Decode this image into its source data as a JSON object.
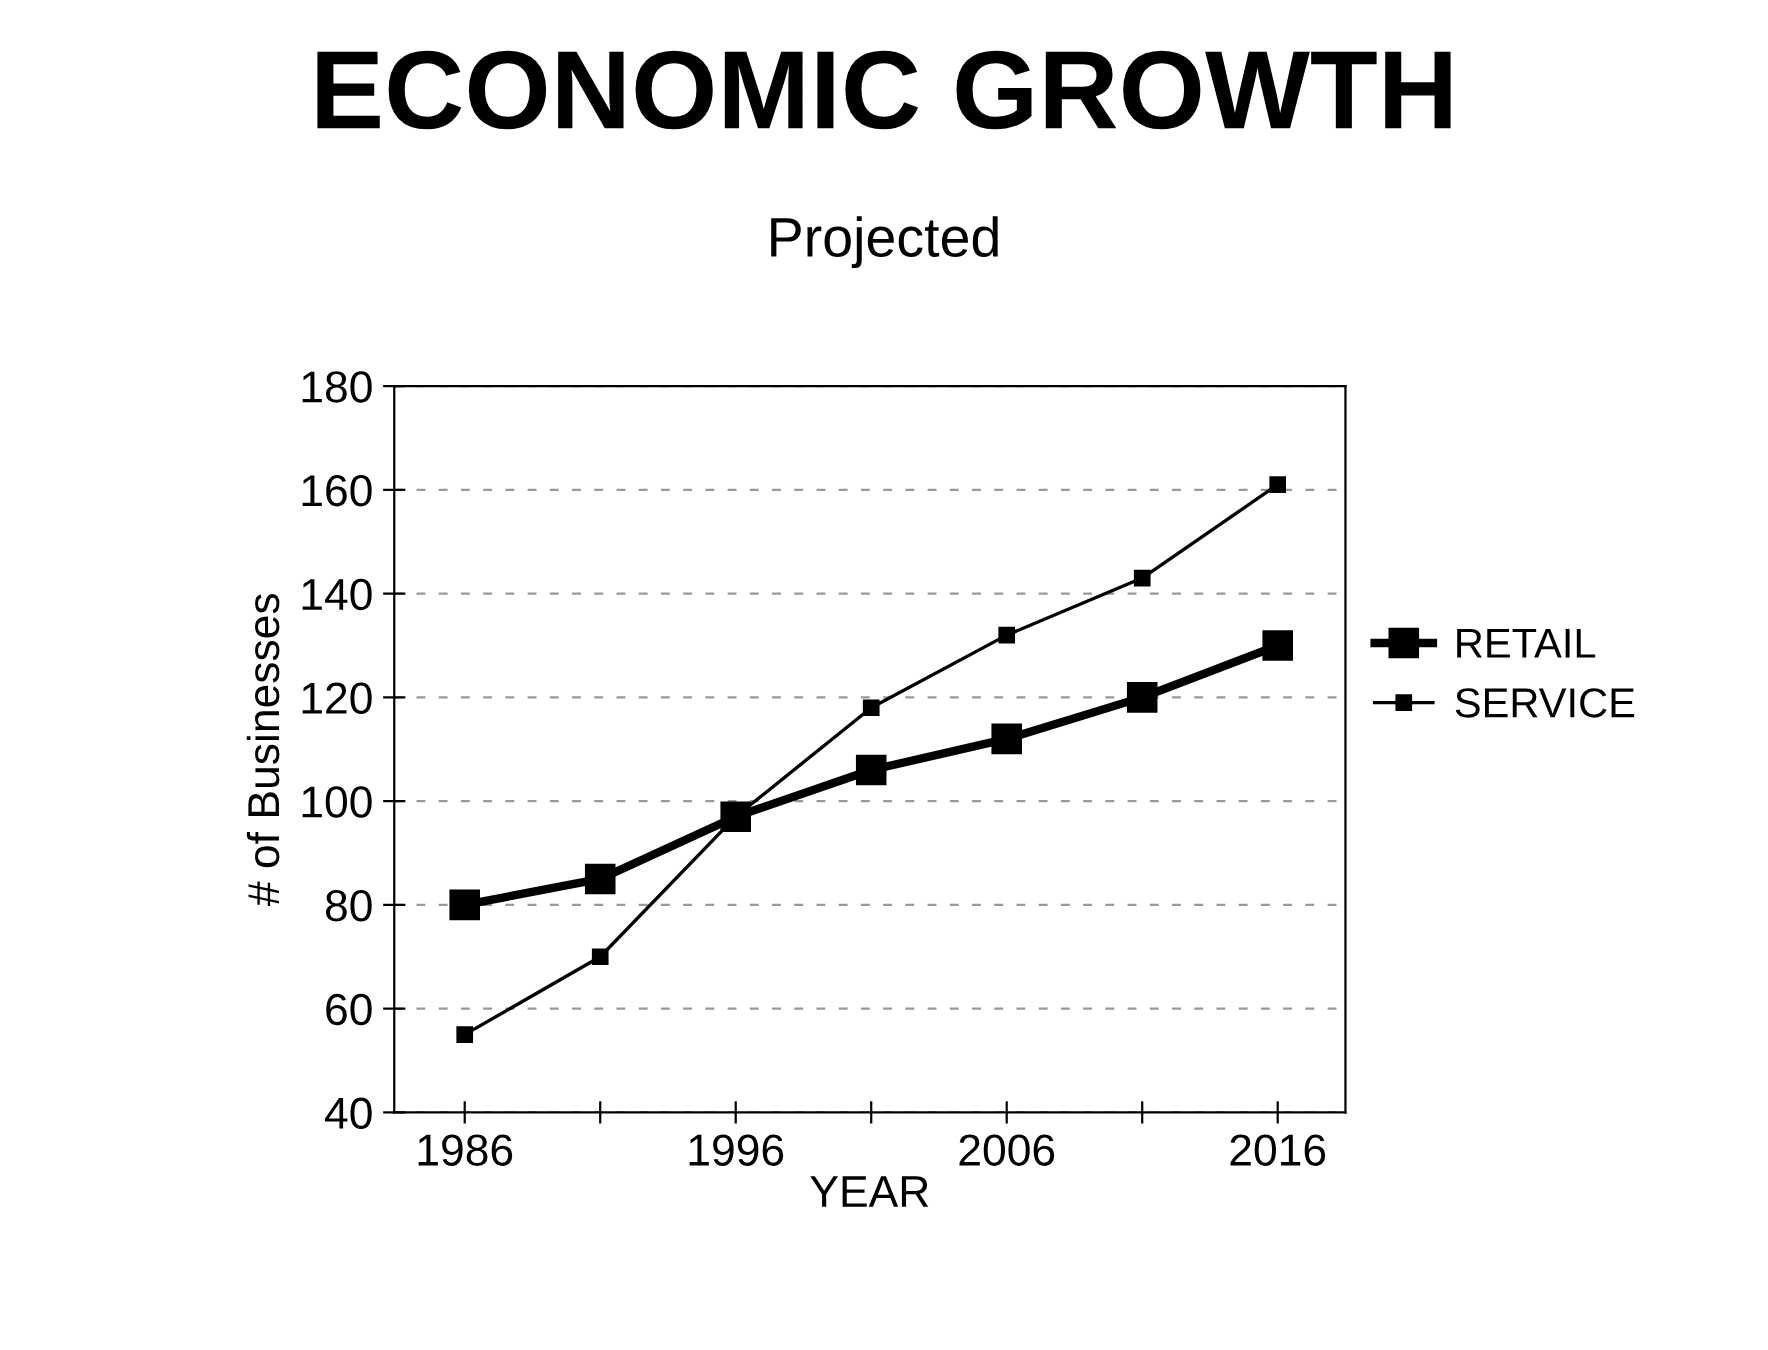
{
  "chart_data": {
    "type": "line",
    "title": "ECONOMIC GROWTH",
    "subtitle": "Projected",
    "xlabel": "YEAR",
    "ylabel": "# of Businesses",
    "x": [
      1986,
      1991,
      1996,
      2001,
      2006,
      2011,
      2016
    ],
    "series": [
      {
        "name": "RETAIL",
        "color": "#000000",
        "values": [
          80,
          85,
          97,
          106,
          112,
          120,
          130
        ]
      },
      {
        "name": "SERVICE",
        "color": "#000000",
        "values": [
          55,
          70,
          97,
          118,
          132,
          143,
          161
        ]
      }
    ],
    "xlim": [
      1983.4,
      2018.5
    ],
    "xticks": [
      1986,
      {
        "value": 1991,
        "label": null
      },
      1996,
      {
        "value": 2001,
        "label": null
      },
      2006,
      {
        "value": 2011,
        "label": null
      },
      2016
    ],
    "ylim": [
      40,
      180
    ],
    "yticks": [
      40,
      60,
      80,
      100,
      120,
      140,
      160,
      180
    ],
    "grid": "y",
    "legend": "right",
    "marker": "square",
    "line_style": "solid"
  }
}
